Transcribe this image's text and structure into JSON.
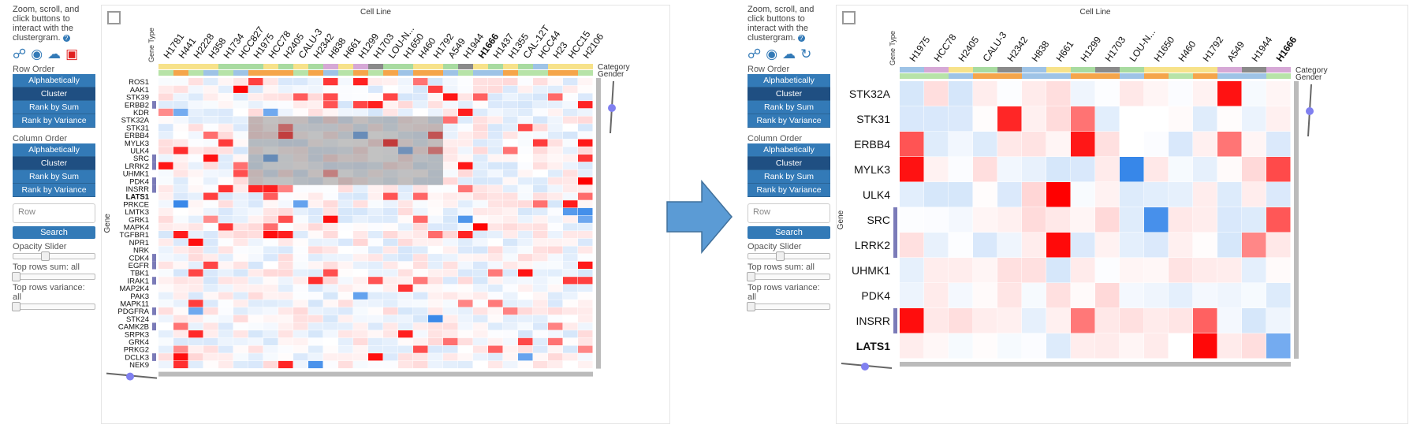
{
  "sidebar": {
    "hint": "Zoom, scroll, and click buttons to interact with the clustergram.",
    "help_icon": "?",
    "icons": [
      "share-icon",
      "camera-icon",
      "cloud-download-icon",
      "crop-icon"
    ],
    "icons_right": [
      "share-icon",
      "camera-icon",
      "cloud-download-icon",
      "reset-icon"
    ],
    "row_order_label": "Row Order",
    "column_order_label": "Column Order",
    "order_buttons": [
      "Alphabetically",
      "Cluster",
      "Rank by Sum",
      "Rank by Variance"
    ],
    "search_placeholder": "Row",
    "search_label": "Search",
    "opacity_label": "Opacity Slider",
    "top_sum_label": "Top rows sum: all",
    "top_var_label": "Top rows variance: all"
  },
  "left": {
    "cell_line_label": "Cell Line",
    "gene_label": "Gene",
    "gene_type_label": "Gene Type",
    "category_label": "Category",
    "gender_label": "Gender",
    "columns": [
      "H1781",
      "H441",
      "H2228",
      "H358",
      "H1734",
      "HCC827",
      "H1975",
      "HCC78",
      "H2405",
      "CALU-3",
      "H2342",
      "H838",
      "H661",
      "H1299",
      "H1703",
      "LOU-N...",
      "H1650",
      "H460",
      "H1792",
      "A549",
      "H1944",
      "H1666",
      "H1437",
      "H1355",
      "CAL-12T",
      "HCC44",
      "H23",
      "HCC15",
      "H2106"
    ],
    "bold_column": "H1666",
    "rows": [
      "ROS1",
      "AAK1",
      "STK39",
      "ERBB2",
      "KDR",
      "STK32A",
      "STK31",
      "ERBB4",
      "MYLK3",
      "ULK4",
      "SRC",
      "LRRK2",
      "UHMK1",
      "PDK4",
      "INSRR",
      "LATS1",
      "PRKCE",
      "LMTK3",
      "GRK1",
      "MAPK4",
      "TGFBR1",
      "NPR1",
      "NRK",
      "CDK4",
      "EGFR",
      "TBK1",
      "IRAK1",
      "MAP2K4",
      "PAK3",
      "MAPK11",
      "PDGFRA",
      "STK24",
      "CAMK2B",
      "SRPK3",
      "GRK4",
      "PRKG2",
      "DCLK3",
      "NEK9"
    ],
    "bold_row": "LATS1"
  },
  "right": {
    "cell_line_label": "Cell Line",
    "gene_label": "Gene",
    "gene_type_label": "Gene Type",
    "category_label": "Category",
    "gender_label": "Gender",
    "columns": [
      "H1975",
      "HCC78",
      "H2405",
      "CALU-3",
      "H2342",
      "H838",
      "H661",
      "H1299",
      "H1703",
      "LOU-N...",
      "H1650",
      "H460",
      "H1792",
      "A549",
      "H1944",
      "H1666"
    ],
    "bold_column": "H1666",
    "rows": [
      "STK32A",
      "STK31",
      "ERBB4",
      "MYLK3",
      "ULK4",
      "SRC",
      "LRRK2",
      "UHMK1",
      "PDK4",
      "INSRR",
      "LATS1"
    ],
    "bold_row": "LATS1"
  },
  "colors": {
    "accent": "#337ab7",
    "positive": "#ff0000",
    "negative": "#1e78e6",
    "arrow": "#5b9bd5"
  }
}
